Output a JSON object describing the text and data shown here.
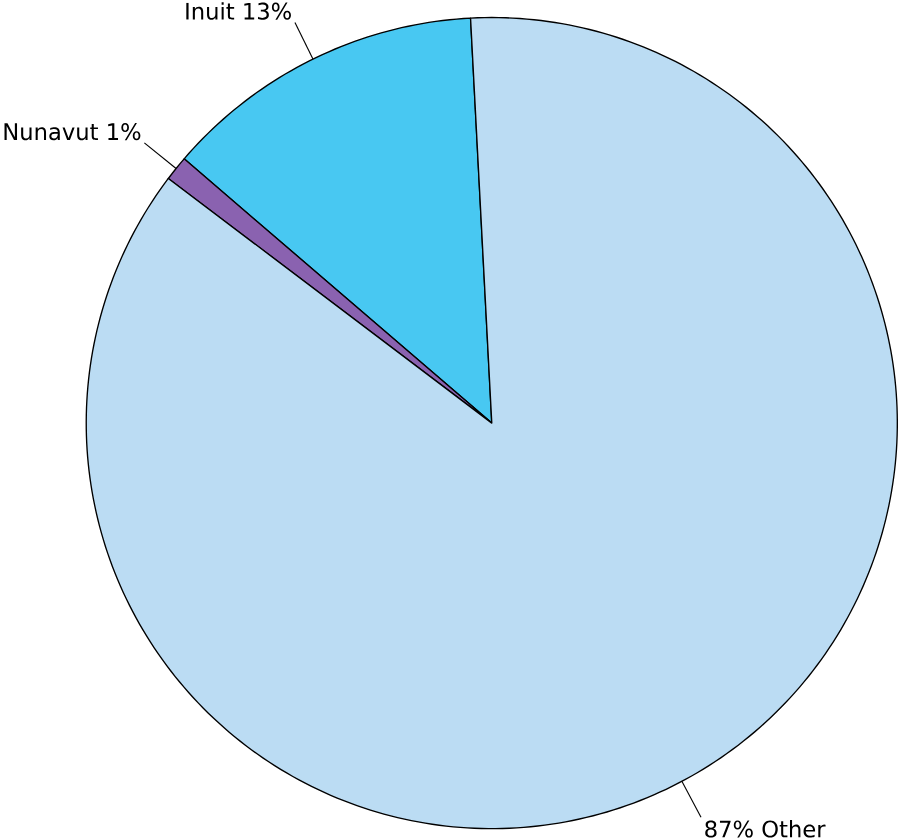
{
  "chart_data": {
    "type": "pie",
    "categories": [
      "Inuit 13%",
      "Nunavut 1%",
      "87% Other"
    ],
    "values": [
      13,
      1,
      87
    ],
    "colors": [
      "#48c8f2",
      "#8a62b0",
      "#bbdcf3"
    ]
  }
}
